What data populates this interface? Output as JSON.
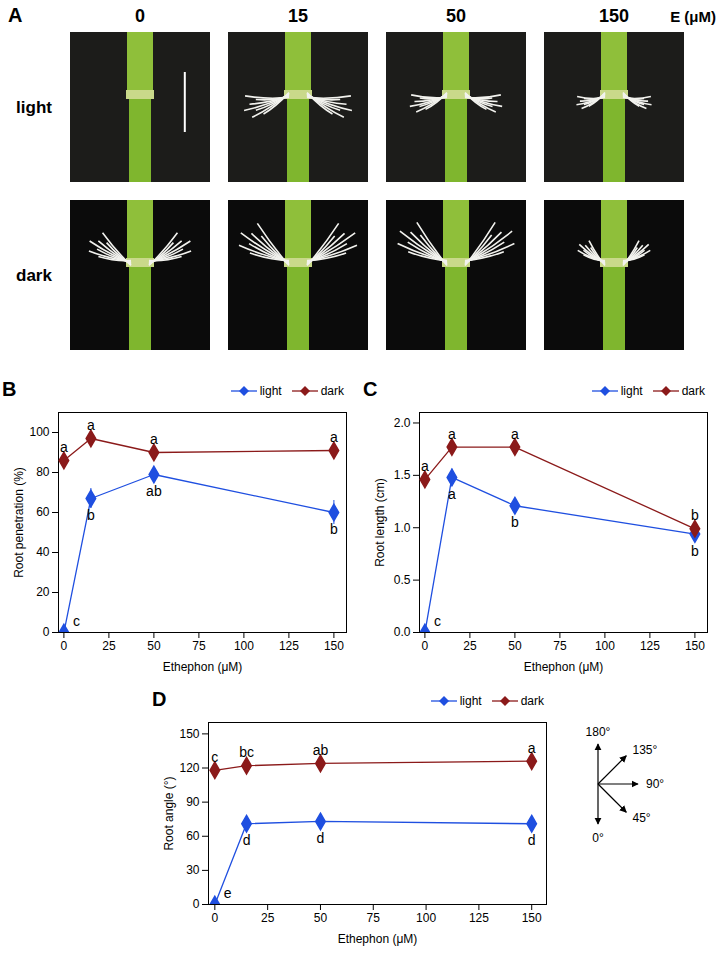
{
  "chart_data": [
    {
      "type": "image_grid",
      "panel": "A",
      "column_title": "E (μM)",
      "columns": [
        "0",
        "15",
        "50",
        "150"
      ],
      "rows": [
        "light",
        "dark"
      ]
    },
    {
      "type": "line",
      "panel": "B",
      "xlabel": "Ethephon (μM)",
      "ylabel": "Root penetration (%)",
      "x": [
        0,
        15,
        50,
        150
      ],
      "xlim": [
        -3,
        157
      ],
      "xticks": [
        0,
        25,
        50,
        75,
        100,
        125,
        150
      ],
      "ylim": [
        0,
        110
      ],
      "yticks": [
        0,
        20,
        40,
        60,
        80,
        100
      ],
      "legend": "top-right",
      "marker": "diamond",
      "series": [
        {
          "name": "light",
          "color": "#1f4fe0",
          "values": [
            0,
            67,
            79,
            60
          ],
          "errors": [
            0,
            5,
            3,
            6
          ],
          "letters": [
            "c",
            "b",
            "ab",
            "b"
          ]
        },
        {
          "name": "dark",
          "color": "#8b1a1a",
          "values": [
            86,
            97,
            90,
            91
          ],
          "errors": [
            2,
            3,
            2,
            1
          ],
          "letters": [
            "a",
            "a",
            "a",
            "a"
          ]
        }
      ]
    },
    {
      "type": "line",
      "panel": "C",
      "xlabel": "Ethephon (μM)",
      "ylabel": "Root length (cm)",
      "x": [
        0,
        15,
        50,
        150
      ],
      "xlim": [
        -3,
        157
      ],
      "xticks": [
        0,
        25,
        50,
        75,
        100,
        125,
        150
      ],
      "ylim": [
        0,
        2.1
      ],
      "yticks": [
        {
          "value": 0,
          "label": "0.0"
        },
        {
          "value": 0.5,
          "label": "0.5"
        },
        {
          "value": 1,
          "label": "1.0"
        },
        {
          "value": 1.5,
          "label": "1.5"
        },
        {
          "value": 2,
          "label": "2.0"
        }
      ],
      "legend": "top-right",
      "marker": "diamond",
      "series": [
        {
          "name": "light",
          "color": "#1f4fe0",
          "values": [
            0,
            1.48,
            1.21,
            0.94
          ],
          "errors": [
            0,
            0.08,
            0.05,
            0.03
          ],
          "letters": [
            "c",
            "a",
            "b",
            "b"
          ]
        },
        {
          "name": "dark",
          "color": "#8b1a1a",
          "values": [
            1.46,
            1.77,
            1.77,
            0.99
          ],
          "errors": [
            0.02,
            0.02,
            0.02,
            0.02
          ],
          "letters": [
            "a",
            "a",
            "a",
            "b"
          ]
        }
      ]
    },
    {
      "type": "line",
      "panel": "D",
      "xlabel": "Ethephon (μM)",
      "ylabel": "Root angle (°)",
      "x": [
        0,
        15,
        50,
        150
      ],
      "xlim": [
        -3,
        157
      ],
      "xticks": [
        0,
        25,
        50,
        75,
        100,
        125,
        150
      ],
      "ylim": [
        0,
        160
      ],
      "yticks": [
        0,
        30,
        60,
        90,
        120,
        150
      ],
      "legend": "top-right",
      "marker": "diamond",
      "series": [
        {
          "name": "light",
          "color": "#1f4fe0",
          "values": [
            0,
            71,
            73,
            71
          ],
          "errors": [
            0,
            1,
            1,
            1
          ],
          "letters": [
            "e",
            "d",
            "d",
            "d"
          ]
        },
        {
          "name": "dark",
          "color": "#8b1a1a",
          "values": [
            118,
            122,
            124,
            126
          ],
          "errors": [
            1,
            1,
            1,
            1
          ],
          "letters": [
            "c",
            "bc",
            "ab",
            "a"
          ]
        }
      ],
      "compass": [
        {
          "value": 180,
          "label": "180°"
        },
        {
          "value": 135,
          "label": "135°"
        },
        {
          "value": 90,
          "label": "90°"
        },
        {
          "value": 45,
          "label": "45°"
        },
        {
          "value": 0,
          "label": "0°"
        }
      ]
    }
  ]
}
